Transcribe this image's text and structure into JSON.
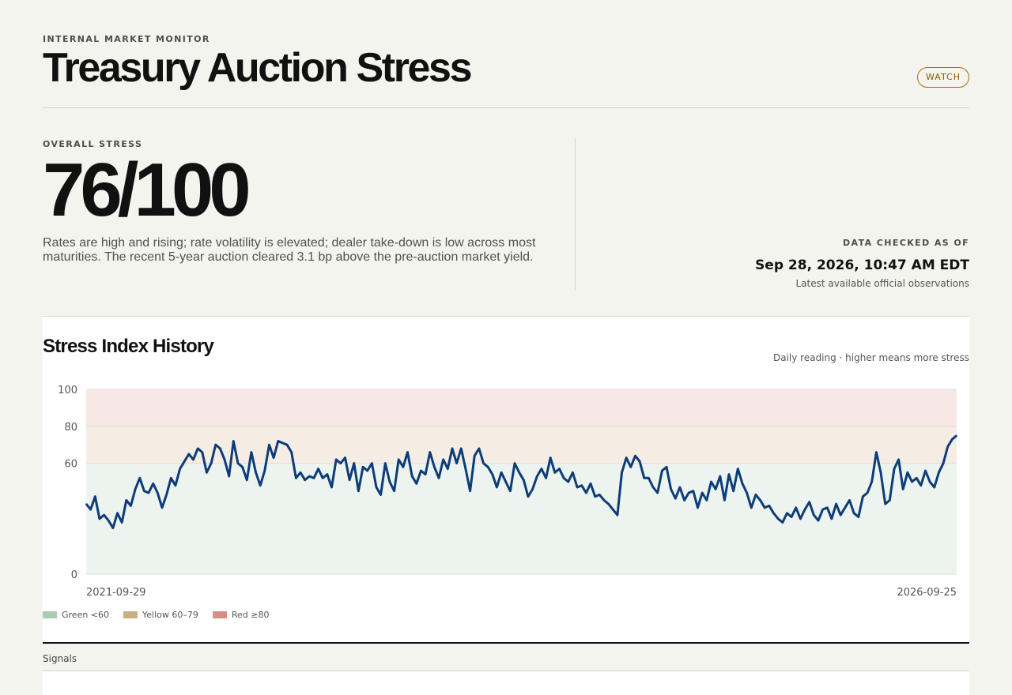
{
  "header": {
    "eyebrow": "INTERNAL MARKET MONITOR",
    "title": "Treasury Auction Stress",
    "badge": "WATCH"
  },
  "overview": {
    "label": "OVERALL STRESS",
    "score": "76/100",
    "summary": "Rates are high and rising; rate volatility is elevated; dealer take-down is low across most maturities. The recent 5-year auction cleared 3.1 bp above the pre-auction market yield."
  },
  "data_check": {
    "label": "DATA CHECKED AS OF",
    "timestamp": "Sep 28, 2026, 10:47 AM EDT",
    "note": "Latest available official observations"
  },
  "chart_section": {
    "title": "Stress Index History",
    "note": "Daily reading · higher means more stress",
    "legend": [
      {
        "label": "Green <60",
        "color": "#a8cdb2"
      },
      {
        "label": "Yellow 60–79",
        "color": "#c9b07e"
      },
      {
        "label": "Red ≥80",
        "color": "#d68f87"
      }
    ]
  },
  "signals": {
    "label": "Signals"
  },
  "colors": {
    "line": "#0d3d78",
    "zone_green": "#edf4ef",
    "zone_yellow": "#f5ede4",
    "zone_red": "#f8e8e5",
    "badge": "#a56d12"
  },
  "chart_data": {
    "type": "line",
    "x_start": "2021-09-29",
    "x_end": "2026-09-25",
    "xlabels": [
      "2021-09-29",
      "2026-09-25"
    ],
    "ylim": [
      0,
      100
    ],
    "yticks": [
      0,
      60,
      80,
      100
    ],
    "series": [
      {
        "values": [
          38,
          35,
          42,
          30,
          32,
          29,
          25,
          33,
          28,
          40,
          37,
          46,
          52,
          45,
          44,
          49,
          44,
          36,
          43,
          52,
          48,
          57,
          61,
          65,
          62,
          68,
          66,
          55,
          60,
          70,
          68,
          62,
          53,
          72,
          60,
          58,
          51,
          66,
          55,
          48,
          56,
          70,
          63,
          72,
          71,
          70,
          66,
          52,
          55,
          51,
          53,
          52,
          57,
          52,
          54,
          47,
          62,
          60,
          63,
          51,
          60,
          45,
          58,
          56,
          60,
          47,
          43,
          60,
          50,
          45,
          62,
          58,
          66,
          53,
          49,
          56,
          54,
          66,
          58,
          52,
          62,
          57,
          68,
          60,
          68,
          57,
          45,
          64,
          68,
          60,
          58,
          54,
          47,
          55,
          50,
          45,
          60,
          55,
          51,
          42,
          46,
          53,
          57,
          52,
          63,
          55,
          57,
          52,
          50,
          55,
          47,
          48,
          44,
          49,
          42,
          43,
          40,
          38,
          35,
          32,
          55,
          63,
          58,
          64,
          61,
          52,
          52,
          47,
          44,
          56,
          58,
          46,
          41,
          47,
          40,
          44,
          45,
          36,
          44,
          40,
          50,
          46,
          53,
          40,
          54,
          45,
          57,
          49,
          44,
          36,
          43,
          40,
          36,
          37,
          33,
          30,
          28,
          33,
          31,
          36,
          30,
          35,
          39,
          32,
          29,
          35,
          36,
          30,
          38,
          32,
          36,
          40,
          33,
          31,
          42,
          44,
          50,
          66,
          55,
          38,
          40,
          57,
          62,
          46,
          55,
          50,
          52,
          48,
          56,
          50,
          47,
          55,
          60,
          69,
          73,
          75
        ]
      }
    ]
  }
}
